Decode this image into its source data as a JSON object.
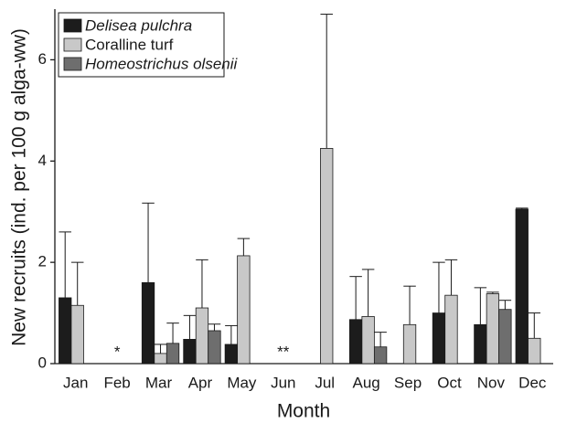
{
  "chart_data": {
    "type": "bar",
    "x_label": "Month",
    "y_label": "New recruits (ind. per 100 g alga-ww)",
    "categories": [
      "Jan",
      "Feb",
      "Mar",
      "Apr",
      "May",
      "Jun",
      "Jul",
      "Aug",
      "Sep",
      "Oct",
      "Nov",
      "Dec"
    ],
    "series": [
      {
        "name": "Delisea pulchra",
        "color": "#1c1c1c",
        "italic": true,
        "values": [
          1.3,
          null,
          1.6,
          0.48,
          0.38,
          null,
          null,
          0.87,
          null,
          1.0,
          0.77,
          3.05
        ],
        "errors": [
          1.3,
          null,
          1.57,
          0.47,
          0.37,
          null,
          null,
          0.85,
          null,
          1.0,
          0.73,
          0.02
        ]
      },
      {
        "name": "Coralline turf",
        "color": "#c8c8c8",
        "italic": false,
        "values": [
          1.15,
          null,
          0.2,
          1.1,
          2.13,
          null,
          4.25,
          0.93,
          0.77,
          1.35,
          1.38,
          0.5
        ],
        "errors": [
          0.85,
          null,
          0.18,
          0.95,
          0.34,
          null,
          2.65,
          0.93,
          0.76,
          0.7,
          0.03,
          0.5
        ]
      },
      {
        "name": "Homeostrichus olsenii",
        "color": "#6e6e6e",
        "italic": true,
        "values": [
          null,
          null,
          0.4,
          0.65,
          null,
          null,
          null,
          0.33,
          null,
          null,
          1.07,
          null
        ],
        "errors": [
          null,
          null,
          0.4,
          0.13,
          null,
          null,
          null,
          0.29,
          null,
          null,
          0.18,
          null
        ]
      }
    ],
    "annotations": [
      {
        "label": "*",
        "category": "Feb"
      },
      {
        "label": "**",
        "category": "Jun"
      }
    ],
    "ylim": [
      0,
      7
    ],
    "yticks": [
      0,
      2,
      4,
      6
    ],
    "grid": false,
    "legend": "upper left"
  }
}
